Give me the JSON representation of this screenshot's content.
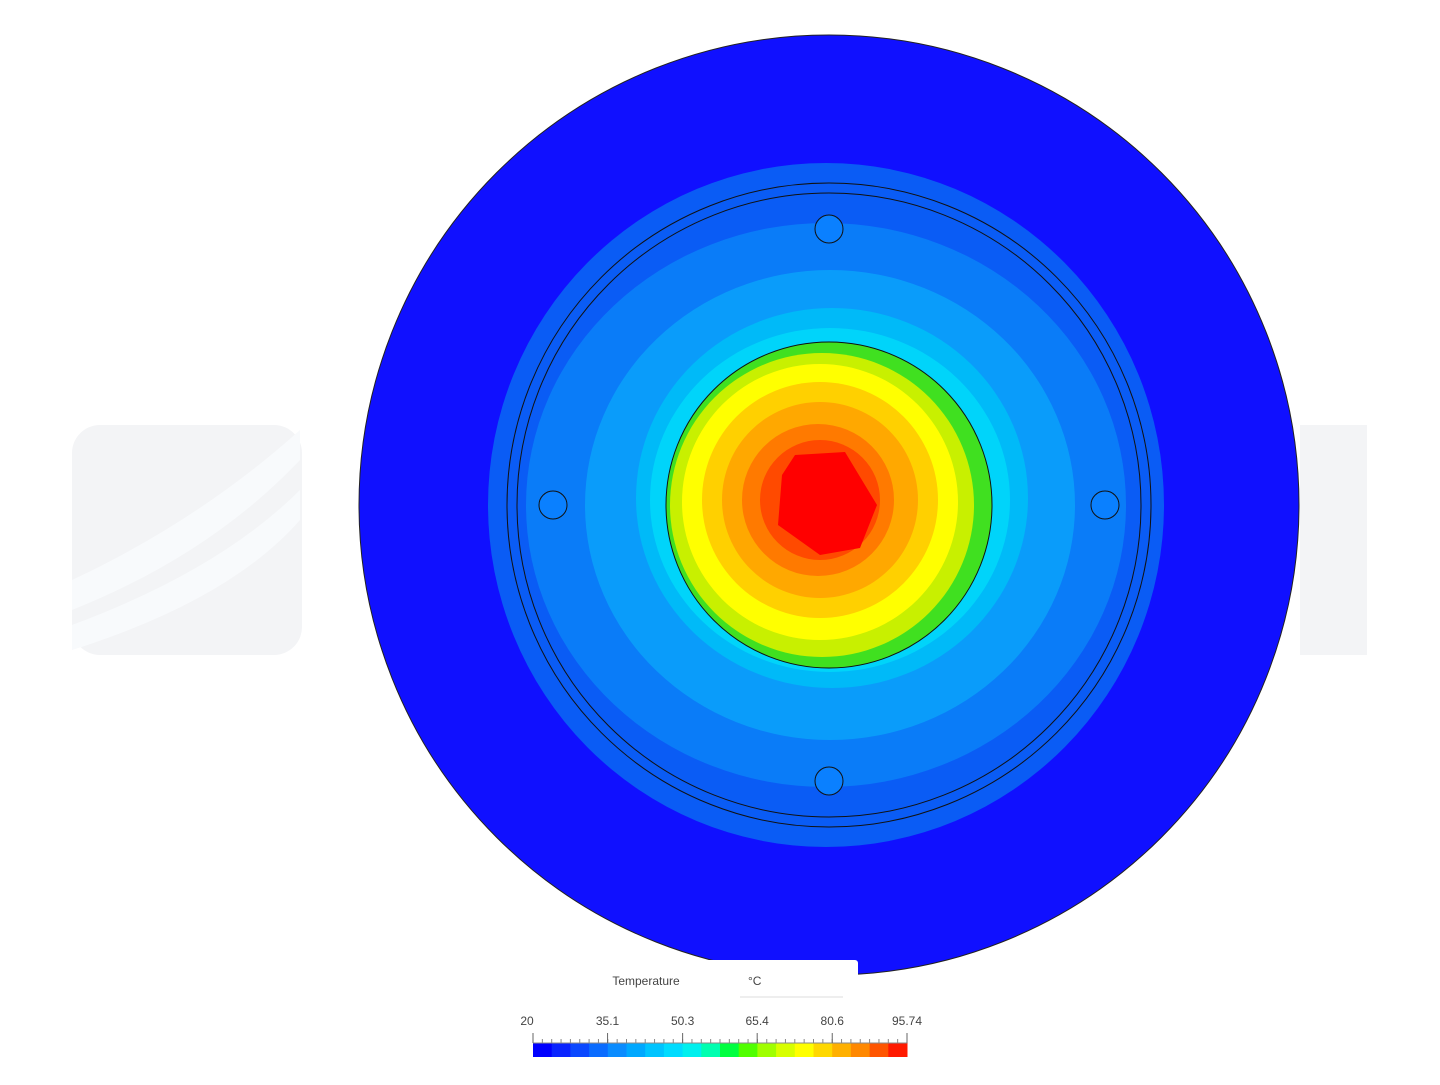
{
  "legend": {
    "title": "Temperature",
    "unit": "°C",
    "ticks": [
      20,
      35.1,
      50.3,
      65.4,
      80.6,
      95.74
    ],
    "colors": [
      "#0000ff",
      "#0a24ff",
      "#0a48ff",
      "#0a6cff",
      "#0a8cff",
      "#00a8ff",
      "#00c4ff",
      "#00dcff",
      "#00f0ee",
      "#00ffb0",
      "#00ff40",
      "#50ff00",
      "#a0ff00",
      "#d8ff00",
      "#ffff00",
      "#ffd800",
      "#ffb000",
      "#ff8800",
      "#ff5500",
      "#ff1a00"
    ]
  }
}
